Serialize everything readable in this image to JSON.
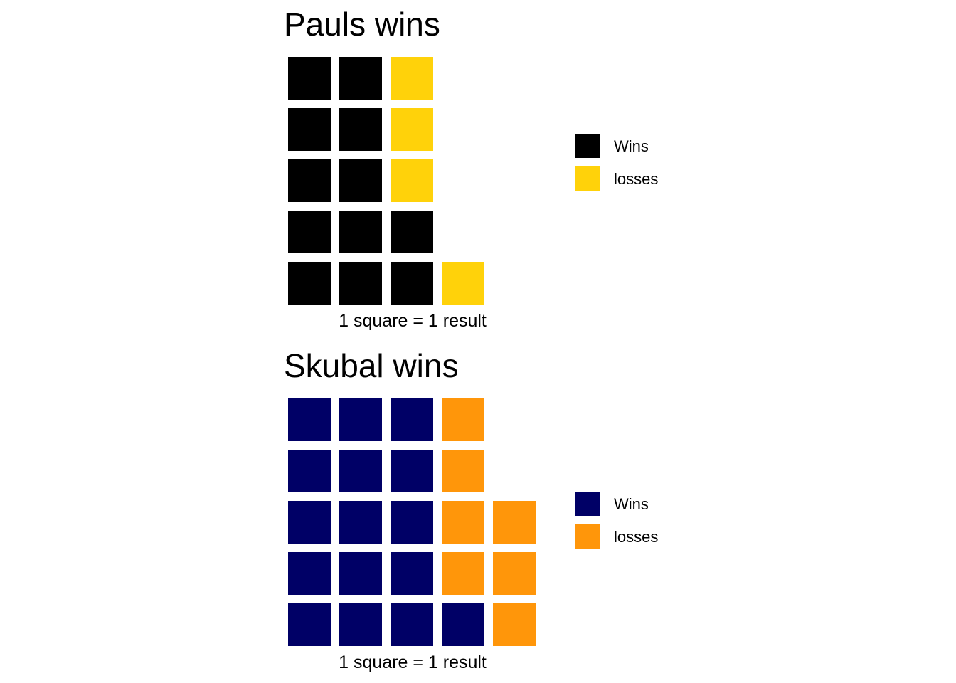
{
  "chart_data": [
    {
      "type": "waffle",
      "title": "Pauls wins",
      "caption": "1 square = 1 result",
      "rows": 5,
      "categories": [
        "Wins",
        "losses"
      ],
      "values": [
        12,
        4
      ],
      "colors": [
        "#000000",
        "#FFD20A"
      ],
      "legend_position": "right",
      "cells": [
        [
          0,
          0,
          1
        ],
        [
          0,
          0,
          1
        ],
        [
          0,
          0,
          1
        ],
        [
          0,
          0,
          0
        ],
        [
          0,
          0,
          0,
          1
        ]
      ]
    },
    {
      "type": "waffle",
      "title": "Skubal wins",
      "caption": "1 square = 1 result",
      "rows": 5,
      "categories": [
        "Wins",
        "losses"
      ],
      "values": [
        16,
        7
      ],
      "colors": [
        "#000066",
        "#FF960A"
      ],
      "legend_position": "right",
      "cells": [
        [
          0,
          0,
          0,
          1
        ],
        [
          0,
          0,
          0,
          1
        ],
        [
          0,
          0,
          0,
          1,
          1
        ],
        [
          0,
          0,
          0,
          1,
          1
        ],
        [
          0,
          0,
          0,
          0,
          1
        ]
      ]
    }
  ]
}
